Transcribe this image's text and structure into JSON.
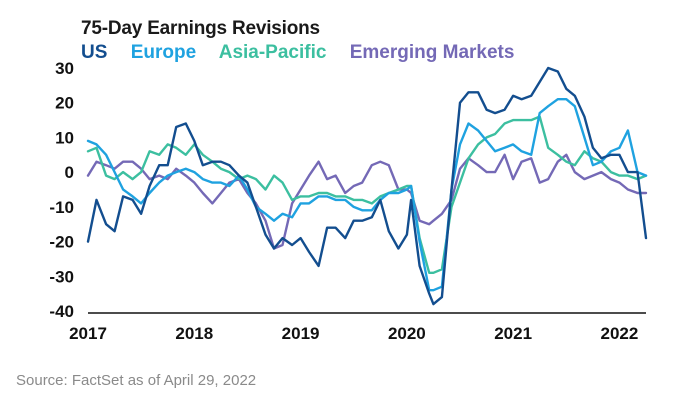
{
  "chart_data": {
    "type": "line",
    "title": "75-Day Earnings Revisions",
    "source": "Source: FactSet as of April 29, 2022",
    "ylim": [
      -40,
      30
    ],
    "yticks": [
      30,
      20,
      10,
      0,
      -10,
      -20,
      -30,
      -40
    ],
    "xlim": [
      2017,
      2022.25
    ],
    "xticks": [
      2017,
      2018,
      2019,
      2020,
      2021,
      2022
    ],
    "grid": false,
    "legend": "top-left",
    "series": [
      {
        "name": "US",
        "color": "#134e8f",
        "points": [
          [
            2017.0,
            -20
          ],
          [
            2017.08,
            -8
          ],
          [
            2017.17,
            -15
          ],
          [
            2017.25,
            -17
          ],
          [
            2017.33,
            -7
          ],
          [
            2017.42,
            -8
          ],
          [
            2017.5,
            -12
          ],
          [
            2017.58,
            -4
          ],
          [
            2017.67,
            2
          ],
          [
            2017.75,
            2
          ],
          [
            2017.83,
            13
          ],
          [
            2017.92,
            14
          ],
          [
            2018.0,
            9
          ],
          [
            2018.08,
            2
          ],
          [
            2018.17,
            3
          ],
          [
            2018.25,
            3
          ],
          [
            2018.33,
            2
          ],
          [
            2018.42,
            -1
          ],
          [
            2018.5,
            -3
          ],
          [
            2018.58,
            -10
          ],
          [
            2018.67,
            -18
          ],
          [
            2018.75,
            -22
          ],
          [
            2018.83,
            -19
          ],
          [
            2018.92,
            -21
          ],
          [
            2019.0,
            -19
          ],
          [
            2019.08,
            -23
          ],
          [
            2019.17,
            -27
          ],
          [
            2019.25,
            -16
          ],
          [
            2019.33,
            -16
          ],
          [
            2019.42,
            -19
          ],
          [
            2019.5,
            -14
          ],
          [
            2019.58,
            -14
          ],
          [
            2019.67,
            -13
          ],
          [
            2019.75,
            -8
          ],
          [
            2019.83,
            -17
          ],
          [
            2019.92,
            -22
          ],
          [
            2020.0,
            -18
          ],
          [
            2020.04,
            -8
          ],
          [
            2020.12,
            -27
          ],
          [
            2020.21,
            -35
          ],
          [
            2020.25,
            -38
          ],
          [
            2020.33,
            -36
          ],
          [
            2020.42,
            -5
          ],
          [
            2020.5,
            20
          ],
          [
            2020.58,
            23
          ],
          [
            2020.67,
            23
          ],
          [
            2020.75,
            18
          ],
          [
            2020.83,
            17
          ],
          [
            2020.92,
            18
          ],
          [
            2021.0,
            22
          ],
          [
            2021.08,
            21
          ],
          [
            2021.17,
            22
          ],
          [
            2021.25,
            26
          ],
          [
            2021.33,
            30
          ],
          [
            2021.42,
            29
          ],
          [
            2021.5,
            24
          ],
          [
            2021.58,
            22
          ],
          [
            2021.67,
            16
          ],
          [
            2021.75,
            7
          ],
          [
            2021.83,
            4
          ],
          [
            2021.92,
            5
          ],
          [
            2022.0,
            5
          ],
          [
            2022.08,
            0
          ],
          [
            2022.17,
            0
          ],
          [
            2022.25,
            -19
          ]
        ]
      },
      {
        "name": "Europe",
        "color": "#1fa2e0",
        "points": [
          [
            2017.0,
            9
          ],
          [
            2017.08,
            8
          ],
          [
            2017.17,
            5
          ],
          [
            2017.25,
            0
          ],
          [
            2017.33,
            -5
          ],
          [
            2017.42,
            -7
          ],
          [
            2017.5,
            -9
          ],
          [
            2017.58,
            -6
          ],
          [
            2017.67,
            -3
          ],
          [
            2017.75,
            -1
          ],
          [
            2017.83,
            0
          ],
          [
            2017.92,
            1
          ],
          [
            2018.0,
            0
          ],
          [
            2018.08,
            -2
          ],
          [
            2018.17,
            -3
          ],
          [
            2018.25,
            -3
          ],
          [
            2018.33,
            -4
          ],
          [
            2018.42,
            -1
          ],
          [
            2018.5,
            -5
          ],
          [
            2018.58,
            -10
          ],
          [
            2018.67,
            -12
          ],
          [
            2018.75,
            -14
          ],
          [
            2018.83,
            -12
          ],
          [
            2018.92,
            -13
          ],
          [
            2019.0,
            -9
          ],
          [
            2019.08,
            -9
          ],
          [
            2019.17,
            -7
          ],
          [
            2019.25,
            -7
          ],
          [
            2019.33,
            -8
          ],
          [
            2019.42,
            -8
          ],
          [
            2019.5,
            -10
          ],
          [
            2019.58,
            -11
          ],
          [
            2019.67,
            -11
          ],
          [
            2019.75,
            -8
          ],
          [
            2019.83,
            -6
          ],
          [
            2019.92,
            -6
          ],
          [
            2020.0,
            -5
          ],
          [
            2020.04,
            -4
          ],
          [
            2020.12,
            -20
          ],
          [
            2020.21,
            -34
          ],
          [
            2020.25,
            -34
          ],
          [
            2020.33,
            -33
          ],
          [
            2020.42,
            -5
          ],
          [
            2020.5,
            8
          ],
          [
            2020.58,
            14
          ],
          [
            2020.67,
            12
          ],
          [
            2020.75,
            9
          ],
          [
            2020.83,
            6
          ],
          [
            2020.92,
            7
          ],
          [
            2021.0,
            8
          ],
          [
            2021.08,
            6
          ],
          [
            2021.17,
            5
          ],
          [
            2021.25,
            17
          ],
          [
            2021.33,
            19
          ],
          [
            2021.42,
            21
          ],
          [
            2021.5,
            21
          ],
          [
            2021.58,
            19
          ],
          [
            2021.67,
            10
          ],
          [
            2021.75,
            2
          ],
          [
            2021.83,
            3
          ],
          [
            2021.92,
            6
          ],
          [
            2022.0,
            7
          ],
          [
            2022.08,
            12
          ],
          [
            2022.17,
            0
          ],
          [
            2022.25,
            -1
          ]
        ]
      },
      {
        "name": "Asia-Pacific",
        "color": "#3cbfa0",
        "points": [
          [
            2017.0,
            6
          ],
          [
            2017.08,
            7
          ],
          [
            2017.17,
            -1
          ],
          [
            2017.25,
            -2
          ],
          [
            2017.33,
            0
          ],
          [
            2017.42,
            -2
          ],
          [
            2017.5,
            0
          ],
          [
            2017.58,
            6
          ],
          [
            2017.67,
            5
          ],
          [
            2017.75,
            8
          ],
          [
            2017.83,
            7
          ],
          [
            2017.92,
            5
          ],
          [
            2018.0,
            8
          ],
          [
            2018.08,
            5
          ],
          [
            2018.17,
            3
          ],
          [
            2018.25,
            1
          ],
          [
            2018.33,
            0
          ],
          [
            2018.42,
            -2
          ],
          [
            2018.5,
            -1
          ],
          [
            2018.58,
            -2
          ],
          [
            2018.67,
            -5
          ],
          [
            2018.75,
            -1
          ],
          [
            2018.83,
            -3
          ],
          [
            2018.92,
            -8
          ],
          [
            2019.0,
            -7
          ],
          [
            2019.08,
            -7
          ],
          [
            2019.17,
            -6
          ],
          [
            2019.25,
            -6
          ],
          [
            2019.33,
            -7
          ],
          [
            2019.42,
            -7
          ],
          [
            2019.5,
            -8
          ],
          [
            2019.58,
            -8
          ],
          [
            2019.67,
            -9
          ],
          [
            2019.75,
            -7
          ],
          [
            2019.83,
            -6
          ],
          [
            2019.92,
            -5
          ],
          [
            2020.0,
            -4
          ],
          [
            2020.04,
            -4
          ],
          [
            2020.12,
            -19
          ],
          [
            2020.21,
            -29
          ],
          [
            2020.25,
            -29
          ],
          [
            2020.33,
            -28
          ],
          [
            2020.42,
            -10
          ],
          [
            2020.5,
            -3
          ],
          [
            2020.58,
            4
          ],
          [
            2020.67,
            8
          ],
          [
            2020.75,
            10
          ],
          [
            2020.83,
            11
          ],
          [
            2020.92,
            14
          ],
          [
            2021.0,
            15
          ],
          [
            2021.08,
            15
          ],
          [
            2021.17,
            15
          ],
          [
            2021.25,
            16
          ],
          [
            2021.33,
            7
          ],
          [
            2021.42,
            5
          ],
          [
            2021.5,
            3
          ],
          [
            2021.58,
            2
          ],
          [
            2021.67,
            6
          ],
          [
            2021.75,
            4
          ],
          [
            2021.83,
            3
          ],
          [
            2021.92,
            0
          ],
          [
            2022.0,
            -1
          ],
          [
            2022.08,
            -1
          ],
          [
            2022.17,
            -2
          ],
          [
            2022.25,
            -1
          ]
        ]
      },
      {
        "name": "Emerging Markets",
        "color": "#7469b6",
        "points": [
          [
            2017.0,
            -1
          ],
          [
            2017.08,
            3
          ],
          [
            2017.17,
            2
          ],
          [
            2017.25,
            1
          ],
          [
            2017.33,
            3
          ],
          [
            2017.42,
            3
          ],
          [
            2017.5,
            1
          ],
          [
            2017.58,
            -2
          ],
          [
            2017.67,
            -1
          ],
          [
            2017.75,
            -2
          ],
          [
            2017.83,
            1
          ],
          [
            2017.92,
            -1
          ],
          [
            2018.0,
            -3
          ],
          [
            2018.08,
            -6
          ],
          [
            2018.17,
            -9
          ],
          [
            2018.25,
            -6
          ],
          [
            2018.33,
            -3
          ],
          [
            2018.42,
            -2
          ],
          [
            2018.5,
            -6
          ],
          [
            2018.58,
            -9
          ],
          [
            2018.67,
            -14
          ],
          [
            2018.75,
            -22
          ],
          [
            2018.83,
            -21
          ],
          [
            2018.92,
            -9
          ],
          [
            2019.0,
            -5
          ],
          [
            2019.08,
            -1
          ],
          [
            2019.17,
            3
          ],
          [
            2019.25,
            -2
          ],
          [
            2019.33,
            -1
          ],
          [
            2019.42,
            -6
          ],
          [
            2019.5,
            -4
          ],
          [
            2019.58,
            -3
          ],
          [
            2019.67,
            2
          ],
          [
            2019.75,
            3
          ],
          [
            2019.83,
            2
          ],
          [
            2019.92,
            -5
          ],
          [
            2020.0,
            -5
          ],
          [
            2020.04,
            -6
          ],
          [
            2020.12,
            -14
          ],
          [
            2020.21,
            -15
          ],
          [
            2020.25,
            -14
          ],
          [
            2020.33,
            -12
          ],
          [
            2020.42,
            -8
          ],
          [
            2020.5,
            1
          ],
          [
            2020.58,
            4
          ],
          [
            2020.67,
            2
          ],
          [
            2020.75,
            0
          ],
          [
            2020.83,
            0
          ],
          [
            2020.92,
            5
          ],
          [
            2021.0,
            -2
          ],
          [
            2021.08,
            3
          ],
          [
            2021.17,
            4
          ],
          [
            2021.25,
            -3
          ],
          [
            2021.33,
            -2
          ],
          [
            2021.42,
            3
          ],
          [
            2021.5,
            5
          ],
          [
            2021.58,
            0
          ],
          [
            2021.67,
            -2
          ],
          [
            2021.75,
            -1
          ],
          [
            2021.83,
            0
          ],
          [
            2021.92,
            -2
          ],
          [
            2022.0,
            -3
          ],
          [
            2022.08,
            -5
          ],
          [
            2022.17,
            -6
          ],
          [
            2022.25,
            -6
          ]
        ]
      }
    ]
  }
}
